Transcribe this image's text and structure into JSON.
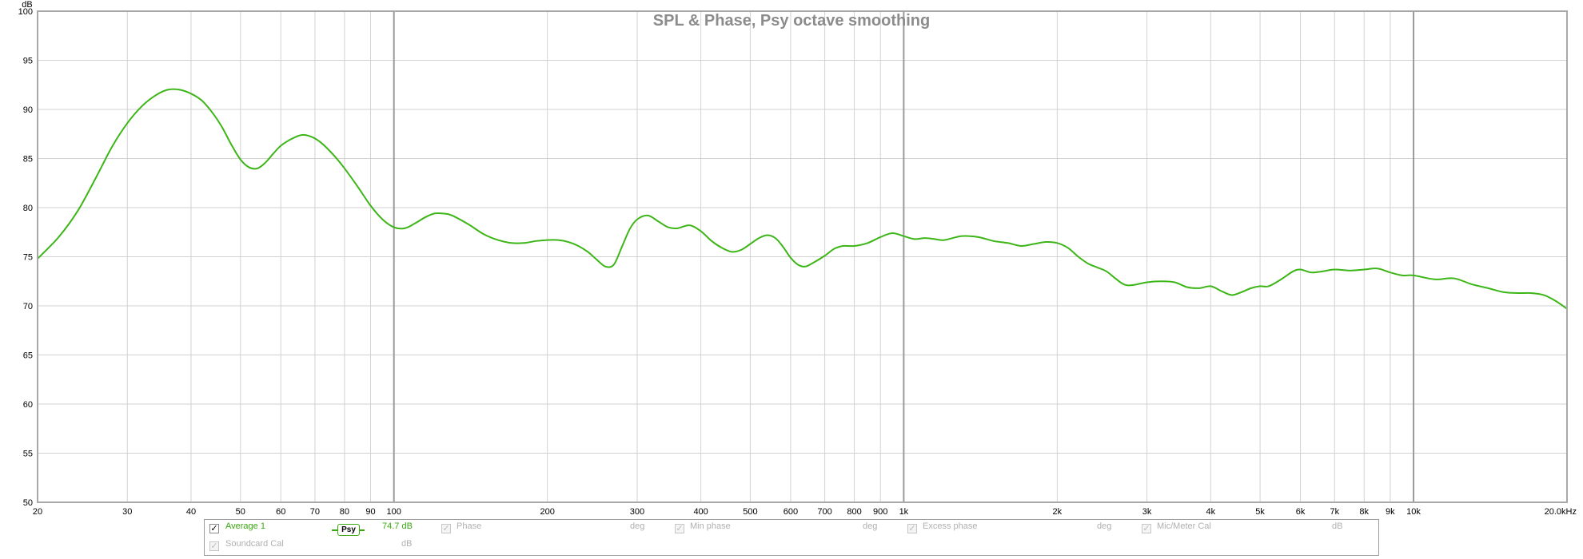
{
  "chart_data": {
    "type": "line",
    "title": "SPL & Phase, Psy octave smoothing",
    "ylabel": "dB",
    "y_unit": "dB",
    "ylim": [
      50,
      100
    ],
    "y_ticks": [
      50,
      55,
      60,
      65,
      70,
      75,
      80,
      85,
      90,
      95,
      100
    ],
    "xlim": [
      20,
      20000
    ],
    "x_scale": "log",
    "x_unit": "kHz",
    "x_ticks": [
      {
        "value": 20,
        "label": "20"
      },
      {
        "value": 30,
        "label": "30"
      },
      {
        "value": 40,
        "label": "40"
      },
      {
        "value": 50,
        "label": "50"
      },
      {
        "value": 60,
        "label": "60"
      },
      {
        "value": 70,
        "label": "70"
      },
      {
        "value": 80,
        "label": "80"
      },
      {
        "value": 90,
        "label": "90"
      },
      {
        "value": 100,
        "label": "100"
      },
      {
        "value": 200,
        "label": "200"
      },
      {
        "value": 300,
        "label": "300"
      },
      {
        "value": 400,
        "label": "400"
      },
      {
        "value": 500,
        "label": "500"
      },
      {
        "value": 600,
        "label": "600"
      },
      {
        "value": 700,
        "label": "700"
      },
      {
        "value": 800,
        "label": "800"
      },
      {
        "value": 900,
        "label": "900"
      },
      {
        "value": 1000,
        "label": "1k"
      },
      {
        "value": 2000,
        "label": "2k"
      },
      {
        "value": 3000,
        "label": "3k"
      },
      {
        "value": 4000,
        "label": "4k"
      },
      {
        "value": 5000,
        "label": "5k"
      },
      {
        "value": 6000,
        "label": "6k"
      },
      {
        "value": 7000,
        "label": "7k"
      },
      {
        "value": 8000,
        "label": "8k"
      },
      {
        "value": 9000,
        "label": "9k"
      },
      {
        "value": 10000,
        "label": "10k"
      },
      {
        "value": 20000,
        "label": "20.0kHz"
      }
    ],
    "grid": true,
    "series": [
      {
        "name": "Average 1",
        "color": "#3cb517",
        "points": [
          [
            20,
            74.8
          ],
          [
            22,
            77.0
          ],
          [
            24,
            79.7
          ],
          [
            26,
            83.0
          ],
          [
            28,
            86.2
          ],
          [
            30,
            88.6
          ],
          [
            32,
            90.3
          ],
          [
            34,
            91.4
          ],
          [
            36,
            92.0
          ],
          [
            38,
            92.0
          ],
          [
            40,
            91.6
          ],
          [
            42,
            90.9
          ],
          [
            44,
            89.7
          ],
          [
            46,
            88.2
          ],
          [
            48,
            86.4
          ],
          [
            50,
            84.9
          ],
          [
            52,
            84.1
          ],
          [
            54,
            84.0
          ],
          [
            56,
            84.6
          ],
          [
            58,
            85.5
          ],
          [
            60,
            86.3
          ],
          [
            63,
            87.0
          ],
          [
            66,
            87.4
          ],
          [
            69,
            87.2
          ],
          [
            72,
            86.6
          ],
          [
            76,
            85.4
          ],
          [
            80,
            84.0
          ],
          [
            85,
            82.1
          ],
          [
            90,
            80.2
          ],
          [
            95,
            78.8
          ],
          [
            100,
            78.0
          ],
          [
            105,
            77.9
          ],
          [
            110,
            78.4
          ],
          [
            115,
            79.0
          ],
          [
            120,
            79.4
          ],
          [
            125,
            79.4
          ],
          [
            130,
            79.2
          ],
          [
            140,
            78.3
          ],
          [
            150,
            77.3
          ],
          [
            160,
            76.7
          ],
          [
            170,
            76.4
          ],
          [
            180,
            76.4
          ],
          [
            190,
            76.6
          ],
          [
            200,
            76.7
          ],
          [
            210,
            76.7
          ],
          [
            220,
            76.5
          ],
          [
            230,
            76.1
          ],
          [
            240,
            75.5
          ],
          [
            250,
            74.7
          ],
          [
            260,
            74.0
          ],
          [
            270,
            74.2
          ],
          [
            280,
            76.0
          ],
          [
            290,
            77.8
          ],
          [
            300,
            78.8
          ],
          [
            315,
            79.2
          ],
          [
            330,
            78.6
          ],
          [
            345,
            78.0
          ],
          [
            360,
            77.9
          ],
          [
            380,
            78.2
          ],
          [
            400,
            77.6
          ],
          [
            420,
            76.6
          ],
          [
            440,
            75.9
          ],
          [
            460,
            75.5
          ],
          [
            480,
            75.7
          ],
          [
            500,
            76.3
          ],
          [
            520,
            76.9
          ],
          [
            540,
            77.2
          ],
          [
            560,
            76.9
          ],
          [
            580,
            76.0
          ],
          [
            600,
            74.9
          ],
          [
            620,
            74.2
          ],
          [
            640,
            74.0
          ],
          [
            660,
            74.3
          ],
          [
            700,
            75.1
          ],
          [
            730,
            75.8
          ],
          [
            760,
            76.1
          ],
          [
            800,
            76.1
          ],
          [
            850,
            76.4
          ],
          [
            900,
            77.0
          ],
          [
            950,
            77.4
          ],
          [
            1000,
            77.1
          ],
          [
            1050,
            76.8
          ],
          [
            1100,
            76.9
          ],
          [
            1150,
            76.8
          ],
          [
            1200,
            76.7
          ],
          [
            1300,
            77.1
          ],
          [
            1400,
            77.0
          ],
          [
            1500,
            76.6
          ],
          [
            1600,
            76.4
          ],
          [
            1700,
            76.1
          ],
          [
            1800,
            76.3
          ],
          [
            1900,
            76.5
          ],
          [
            2000,
            76.4
          ],
          [
            2100,
            75.9
          ],
          [
            2200,
            75.0
          ],
          [
            2300,
            74.3
          ],
          [
            2400,
            73.9
          ],
          [
            2500,
            73.5
          ],
          [
            2600,
            72.8
          ],
          [
            2700,
            72.2
          ],
          [
            2800,
            72.1
          ],
          [
            3000,
            72.4
          ],
          [
            3200,
            72.5
          ],
          [
            3400,
            72.4
          ],
          [
            3600,
            71.9
          ],
          [
            3800,
            71.8
          ],
          [
            4000,
            72.0
          ],
          [
            4200,
            71.5
          ],
          [
            4400,
            71.1
          ],
          [
            4600,
            71.4
          ],
          [
            4800,
            71.8
          ],
          [
            5000,
            72.0
          ],
          [
            5200,
            72.0
          ],
          [
            5500,
            72.7
          ],
          [
            5800,
            73.5
          ],
          [
            6000,
            73.7
          ],
          [
            6300,
            73.4
          ],
          [
            6600,
            73.5
          ],
          [
            7000,
            73.7
          ],
          [
            7500,
            73.6
          ],
          [
            8000,
            73.7
          ],
          [
            8500,
            73.8
          ],
          [
            9000,
            73.4
          ],
          [
            9500,
            73.1
          ],
          [
            10000,
            73.1
          ],
          [
            11000,
            72.7
          ],
          [
            12000,
            72.8
          ],
          [
            13000,
            72.2
          ],
          [
            14000,
            71.8
          ],
          [
            15000,
            71.4
          ],
          [
            16000,
            71.3
          ],
          [
            17000,
            71.3
          ],
          [
            18000,
            71.1
          ],
          [
            19000,
            70.5
          ],
          [
            20000,
            69.7
          ]
        ]
      }
    ],
    "legend_placement": "bottom"
  },
  "legend": {
    "row1": [
      {
        "label": "Average 1",
        "checked": true,
        "enabled": true
      },
      {
        "smoothing": "Psy",
        "value": "74.7 dB"
      },
      {
        "label": "Phase",
        "unit": "deg",
        "checked": true,
        "enabled": false
      },
      {
        "label": "Min phase",
        "unit": "deg",
        "checked": true,
        "enabled": false
      },
      {
        "label": "Excess phase",
        "unit": "deg",
        "checked": true,
        "enabled": false
      },
      {
        "label": "Mic/Meter Cal",
        "unit": "dB",
        "checked": true,
        "enabled": false
      }
    ],
    "row2": [
      {
        "label": "Soundcard Cal",
        "unit": "dB",
        "checked": true,
        "enabled": false
      }
    ]
  }
}
